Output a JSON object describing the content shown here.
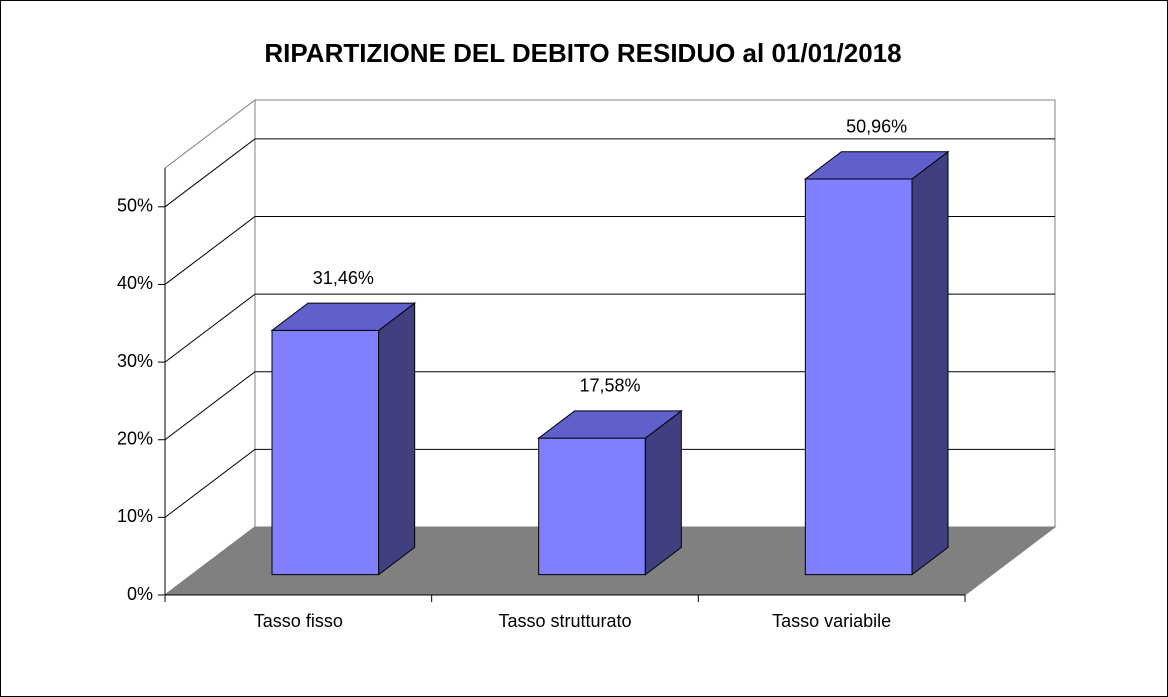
{
  "chart_data": {
    "type": "bar3d",
    "title": "RIPARTIZIONE DEL DEBITO RESIDUO al 01/01/2018",
    "categories": [
      "Tasso fisso",
      "Tasso strutturato",
      "Tasso variabile"
    ],
    "values": [
      31.46,
      17.58,
      50.96
    ],
    "value_labels": [
      "31,46%",
      "17,58%",
      "50,96%"
    ],
    "color": "#8080ff",
    "ylim": [
      0,
      55
    ],
    "yticks": [
      {
        "value": 0,
        "label": "0%"
      },
      {
        "value": 10,
        "label": "10%"
      },
      {
        "value": 20,
        "label": "20%"
      },
      {
        "value": 30,
        "label": "30%"
      },
      {
        "value": 40,
        "label": "40%"
      },
      {
        "value": 50,
        "label": "50%"
      }
    ],
    "grid": true
  }
}
